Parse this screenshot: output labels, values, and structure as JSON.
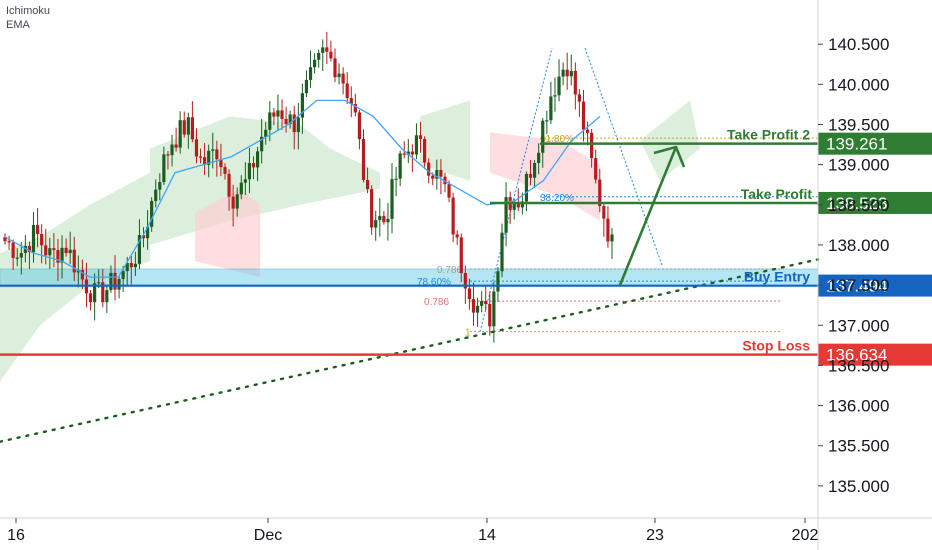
{
  "indicators": [
    "Ichimoku",
    "EMA"
  ],
  "colors": {
    "up": "#26a69a",
    "down": "#ef5350",
    "bull_body": "#1b5e20",
    "bear_body": "#b71c1c",
    "ema": "#42a5f5",
    "cloud_green": "#c8e6c9",
    "cloud_red": "#ffcdd2",
    "buy_zone": "#5ac8e6",
    "trend": "#1b5e20",
    "take_profit": "#2e7d32",
    "buy_entry": "#1565c0",
    "stop_loss": "#e53935",
    "fib_gold": "#c9a227",
    "fib_blue": "#1e88e5",
    "fib_red": "#e57373"
  },
  "chart_data": {
    "type": "candlestick",
    "title": "",
    "ylim": [
      134.6,
      141.05
    ],
    "y_ticks": [
      135.0,
      135.5,
      136.0,
      136.5,
      137.0,
      137.5,
      138.0,
      138.5,
      139.0,
      139.5,
      140.0,
      140.5
    ],
    "y_tick_labels": [
      "135.000",
      "135.500",
      "136.000",
      "136.500",
      "137.000",
      "137.500",
      "138.000",
      "138.500",
      "139.000",
      "139.500",
      "140.000",
      "140.500"
    ],
    "x_tick_labels": [
      "16",
      "Dec",
      "14",
      "23",
      "202"
    ],
    "grid": false,
    "price_path": [
      138.05,
      137.9,
      138.15,
      137.85,
      138.0,
      137.6,
      137.35,
      137.5,
      137.7,
      138.0,
      138.8,
      139.3,
      139.5,
      139.0,
      139.2,
      138.6,
      138.8,
      139.4,
      139.7,
      139.5,
      140.0,
      140.4,
      140.2,
      139.7,
      138.4,
      138.3,
      139.0,
      139.3,
      139.0,
      138.7,
      137.8,
      137.25,
      137.1,
      138.6,
      138.55,
      139.2,
      139.9,
      140.3,
      139.6,
      138.7,
      138.0
    ],
    "ema_path": [
      138.1,
      137.9,
      137.8,
      137.6,
      137.6,
      138.2,
      138.9,
      139.0,
      139.1,
      139.3,
      139.5,
      139.8,
      139.8,
      139.6,
      139.2,
      138.9,
      138.7,
      138.5,
      138.55,
      138.8,
      139.3,
      139.6
    ],
    "levels": {
      "take_profit_2": {
        "label": "Take Profit 2",
        "value": 139.261,
        "value_label": "139.261"
      },
      "take_profit": {
        "label": "Take Profit",
        "value": 138.523,
        "value_label": "138.523"
      },
      "buy_entry": {
        "label": "Buy Entry",
        "value": 137.494,
        "value_label": "137.494"
      },
      "stop_loss": {
        "label": "Stop Loss",
        "value": 136.634,
        "value_label": "136.634"
      }
    },
    "buy_zone": [
      137.48,
      137.7
    ],
    "fib_labels": {
      "fib_618": {
        "label": "61.80%",
        "value": 139.33
      },
      "fib_382": {
        "label": "38.20%",
        "value": 138.6
      },
      "fib_786_pct": {
        "label": "78.60%",
        "value": 137.55
      },
      "fib_786a": {
        "label": "0.786",
        "value": 137.7
      },
      "fib_786b": {
        "label": "0.786",
        "value": 137.3
      },
      "fib_1": {
        "label": "1",
        "value": 136.92
      }
    },
    "trendline": {
      "from": [
        0,
        135.55
      ],
      "to": [
        1,
        137.82
      ]
    }
  }
}
